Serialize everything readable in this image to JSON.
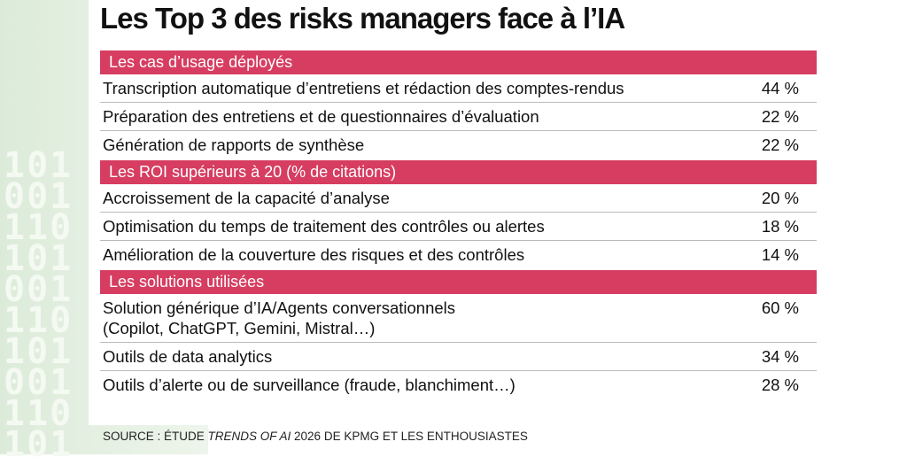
{
  "title": "Les Top 3 des risks managers face à l’IA",
  "sections": [
    {
      "heading": "Les cas d’usage déployés",
      "rows": [
        {
          "label": "Transcription automatique d’entretiens et rédaction des comptes-rendus",
          "value": "44 %"
        },
        {
          "label": "Préparation des entretiens et de questionnaires d’évaluation",
          "value": "22 %"
        },
        {
          "label": "Génération de rapports de synthèse",
          "value": "22 %"
        }
      ]
    },
    {
      "heading": "Les ROI supérieurs à 20 (% de citations)",
      "rows": [
        {
          "label": "Accroissement de la capacité d’analyse",
          "value": "20 %"
        },
        {
          "label": "Optimisation du temps de traitement des contrôles ou alertes",
          "value": "18 %"
        },
        {
          "label": "Amélioration de la couverture des risques et des contrôles",
          "value": "14 %"
        }
      ]
    },
    {
      "heading": "Les solutions utilisées",
      "rows": [
        {
          "label": "Solution générique d’IA/Agents conversationnels",
          "detail": "(Copilot, ChatGPT, Gemini, Mistral…)",
          "value": "60 %"
        },
        {
          "label": "Outils de data analytics",
          "value": "34 %"
        },
        {
          "label": "Outils d’alerte ou de surveillance (fraude, blanchiment…)",
          "value": "28 %"
        }
      ]
    }
  ],
  "source": {
    "prefix": "SOURCE : ÉTUDE ",
    "italic": "TRENDS OF AI",
    "suffix": " 2026 DE KPMG ET LES ENTHOUSIASTES"
  },
  "background_digits": [
    "101",
    "001",
    "110",
    "101",
    "001",
    "110",
    "101",
    "001",
    "110",
    "101"
  ]
}
